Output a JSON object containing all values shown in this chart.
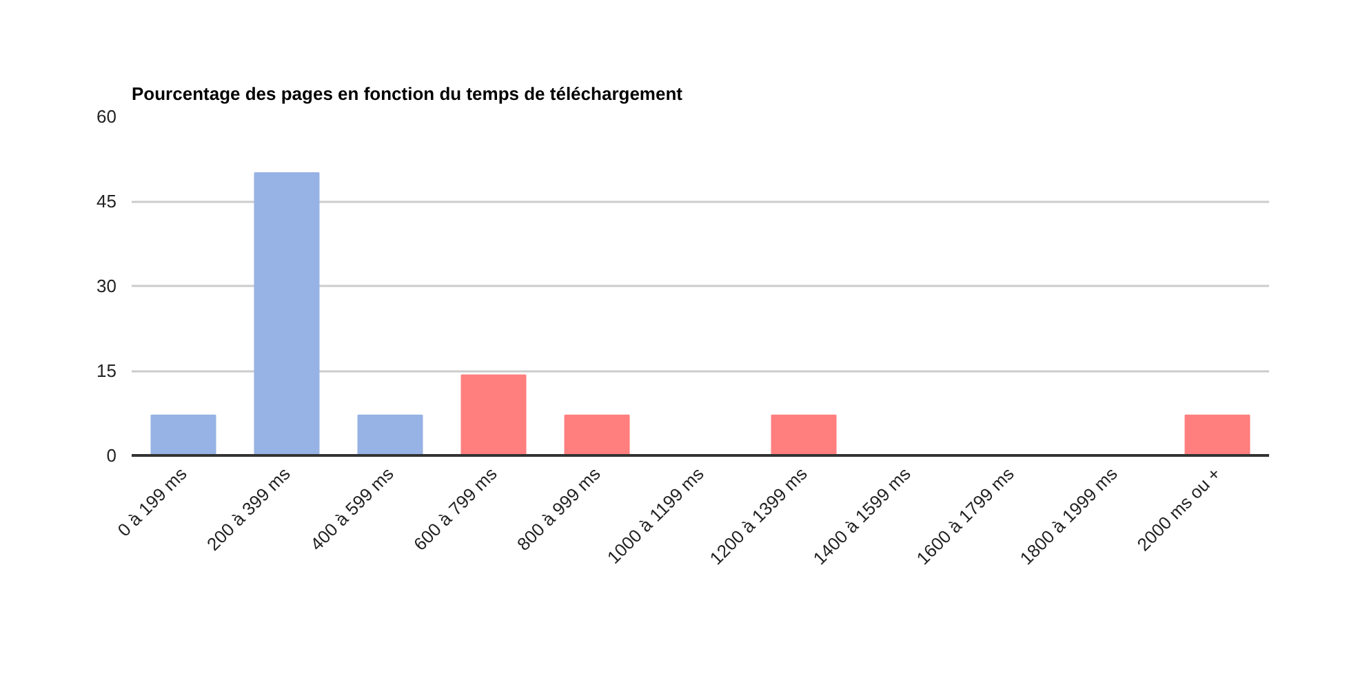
{
  "chart_data": {
    "type": "bar",
    "title": "Pourcentage des pages en fonction du temps de téléchargement",
    "categories": [
      "0 à 199 ms",
      "200 à 399 ms",
      "400 à 599 ms",
      "600 à 799 ms",
      "800 à 999 ms",
      "1000 à 1199 ms",
      "1200 à 1399 ms",
      "1400 à 1599 ms",
      "1600 à 1799 ms",
      "1800 à 1999 ms",
      "2000 ms ou +"
    ],
    "values": [
      7.1,
      50,
      7.1,
      14.2,
      7.1,
      0,
      7.1,
      0,
      0,
      0,
      7.1
    ],
    "colors": [
      "#97b2e4",
      "#97b2e4",
      "#97b2e4",
      "#ff7f7f",
      "#ff7f7f",
      "#ff7f7f",
      "#ff7f7f",
      "#ff7f7f",
      "#ff7f7f",
      "#ff7f7f",
      "#ff7f7f"
    ],
    "ylim": [
      0,
      60
    ],
    "yticks": [
      0,
      15,
      30,
      45,
      60
    ],
    "grid": "y"
  }
}
